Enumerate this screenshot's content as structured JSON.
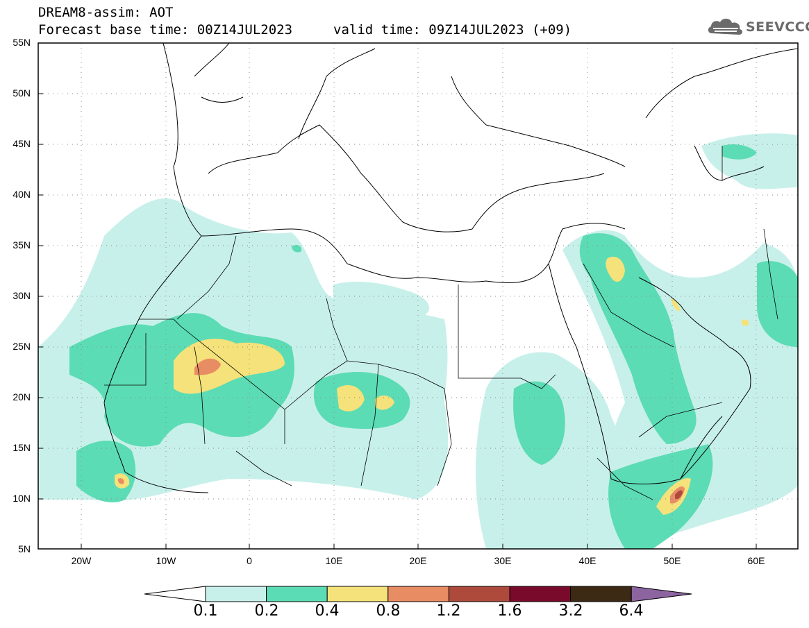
{
  "header": {
    "title": "DREAM8-assim: AOT",
    "base_time": "Forecast base time: 00Z14JUL2023",
    "valid_time": "valid time: 09Z14JUL2023 (+09)",
    "logo_text": "SEEVCCC"
  },
  "map": {
    "lon_range": [
      -25,
      65
    ],
    "lat_range": [
      5,
      55
    ],
    "lat_labels": [
      "55N",
      "50N",
      "45N",
      "40N",
      "35N",
      "30N",
      "25N",
      "20N",
      "15N",
      "10N",
      "5N"
    ],
    "lon_labels": [
      "20W",
      "10W",
      "0",
      "10E",
      "20E",
      "30E",
      "40E",
      "50E",
      "60E"
    ],
    "gridlines": "dotted"
  },
  "colorbar": {
    "labels": [
      "0.1",
      "0.2",
      "0.4",
      "0.8",
      "1.2",
      "1.6",
      "3.2",
      "6.4"
    ],
    "colors": [
      "#ffffff",
      "#c8f0ea",
      "#5cdcb4",
      "#f5e27a",
      "#e88c64",
      "#ae4a3c",
      "#7a0a2c",
      "#3c2a14",
      "#8c64a0"
    ]
  }
}
